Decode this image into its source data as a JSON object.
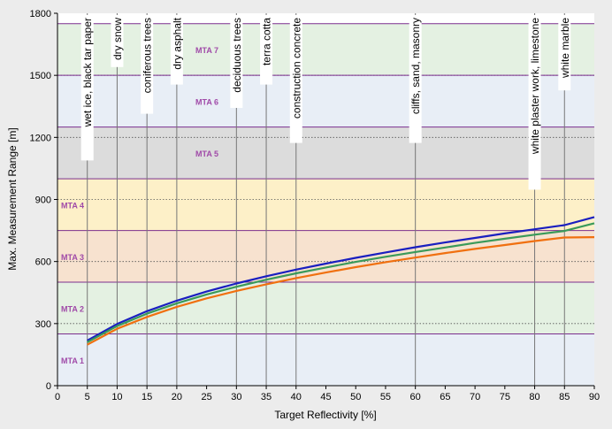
{
  "chart_data": {
    "type": "line",
    "title": "",
    "xlabel": "Target Reflectivity [%]",
    "ylabel": "Max. Measurement Range [m]",
    "xlim": [
      0,
      90
    ],
    "ylim": [
      0,
      1800
    ],
    "x_ticks": [
      0,
      5,
      10,
      15,
      20,
      25,
      30,
      35,
      40,
      45,
      50,
      55,
      60,
      65,
      70,
      75,
      80,
      85,
      90
    ],
    "y_ticks": [
      0,
      300,
      600,
      900,
      1200,
      1500,
      1800
    ],
    "grid": true,
    "legend": "none",
    "mta_zones": [
      {
        "label": "MTA 1",
        "from": 0,
        "to": 250,
        "color": "#e8eef6"
      },
      {
        "label": "MTA 2",
        "from": 250,
        "to": 500,
        "color": "#e4f1e2"
      },
      {
        "label": "MTA 3",
        "from": 500,
        "to": 750,
        "color": "#f7e2cf"
      },
      {
        "label": "MTA 4",
        "from": 750,
        "to": 1000,
        "color": "#fdf0c8"
      },
      {
        "label": "MTA 5",
        "from": 1000,
        "to": 1250,
        "color": "#dcdcdc"
      },
      {
        "label": "MTA 6",
        "from": 1250,
        "to": 1500,
        "color": "#e8eef6"
      },
      {
        "label": "MTA 7",
        "from": 1500,
        "to": 1750,
        "color": "#e4f1e2"
      }
    ],
    "zone_line_color": "#7b2f8e",
    "zone_label_color": "#a04aa8",
    "materials": [
      {
        "x": 5,
        "label": "wet ice, black tar paper"
      },
      {
        "x": 10,
        "label": "dry snow"
      },
      {
        "x": 15,
        "label": "coniferous trees"
      },
      {
        "x": 20,
        "label": "dry asphalt"
      },
      {
        "x": 30,
        "label": "deciduous trees"
      },
      {
        "x": 35,
        "label": "terra cotta"
      },
      {
        "x": 40,
        "label": "construction concrete"
      },
      {
        "x": 60,
        "label": "cliffs, sand, masonry"
      },
      {
        "x": 80,
        "label": "white plaster work, limestone"
      },
      {
        "x": 85,
        "label": "white marble"
      }
    ],
    "series": [
      {
        "color": "#1a1fc0",
        "x": [
          5,
          10,
          15,
          20,
          25,
          30,
          35,
          40,
          45,
          50,
          55,
          60,
          65,
          70,
          75,
          80,
          85,
          90
        ],
        "y": [
          218,
          298,
          360,
          411,
          455,
          494,
          529,
          561,
          590,
          618,
          644,
          669,
          692,
          714,
          736,
          756,
          776,
          815
        ]
      },
      {
        "color": "#3a9a5a",
        "x": [
          5,
          10,
          15,
          20,
          25,
          30,
          35,
          40,
          45,
          50,
          55,
          60,
          65,
          70,
          75,
          80,
          85,
          90
        ],
        "y": [
          210,
          288,
          348,
          398,
          441,
          478,
          512,
          543,
          571,
          598,
          623,
          646,
          668,
          690,
          710,
          730,
          748,
          785
        ]
      },
      {
        "color": "#f07010",
        "x": [
          5,
          10,
          15,
          20,
          25,
          30,
          35,
          40,
          45,
          50,
          55,
          60,
          65,
          70,
          75,
          80,
          85,
          90
        ],
        "y": [
          198,
          275,
          332,
          381,
          422,
          458,
          490,
          520,
          547,
          573,
          597,
          619,
          641,
          661,
          680,
          699,
          716,
          718
        ]
      }
    ]
  }
}
